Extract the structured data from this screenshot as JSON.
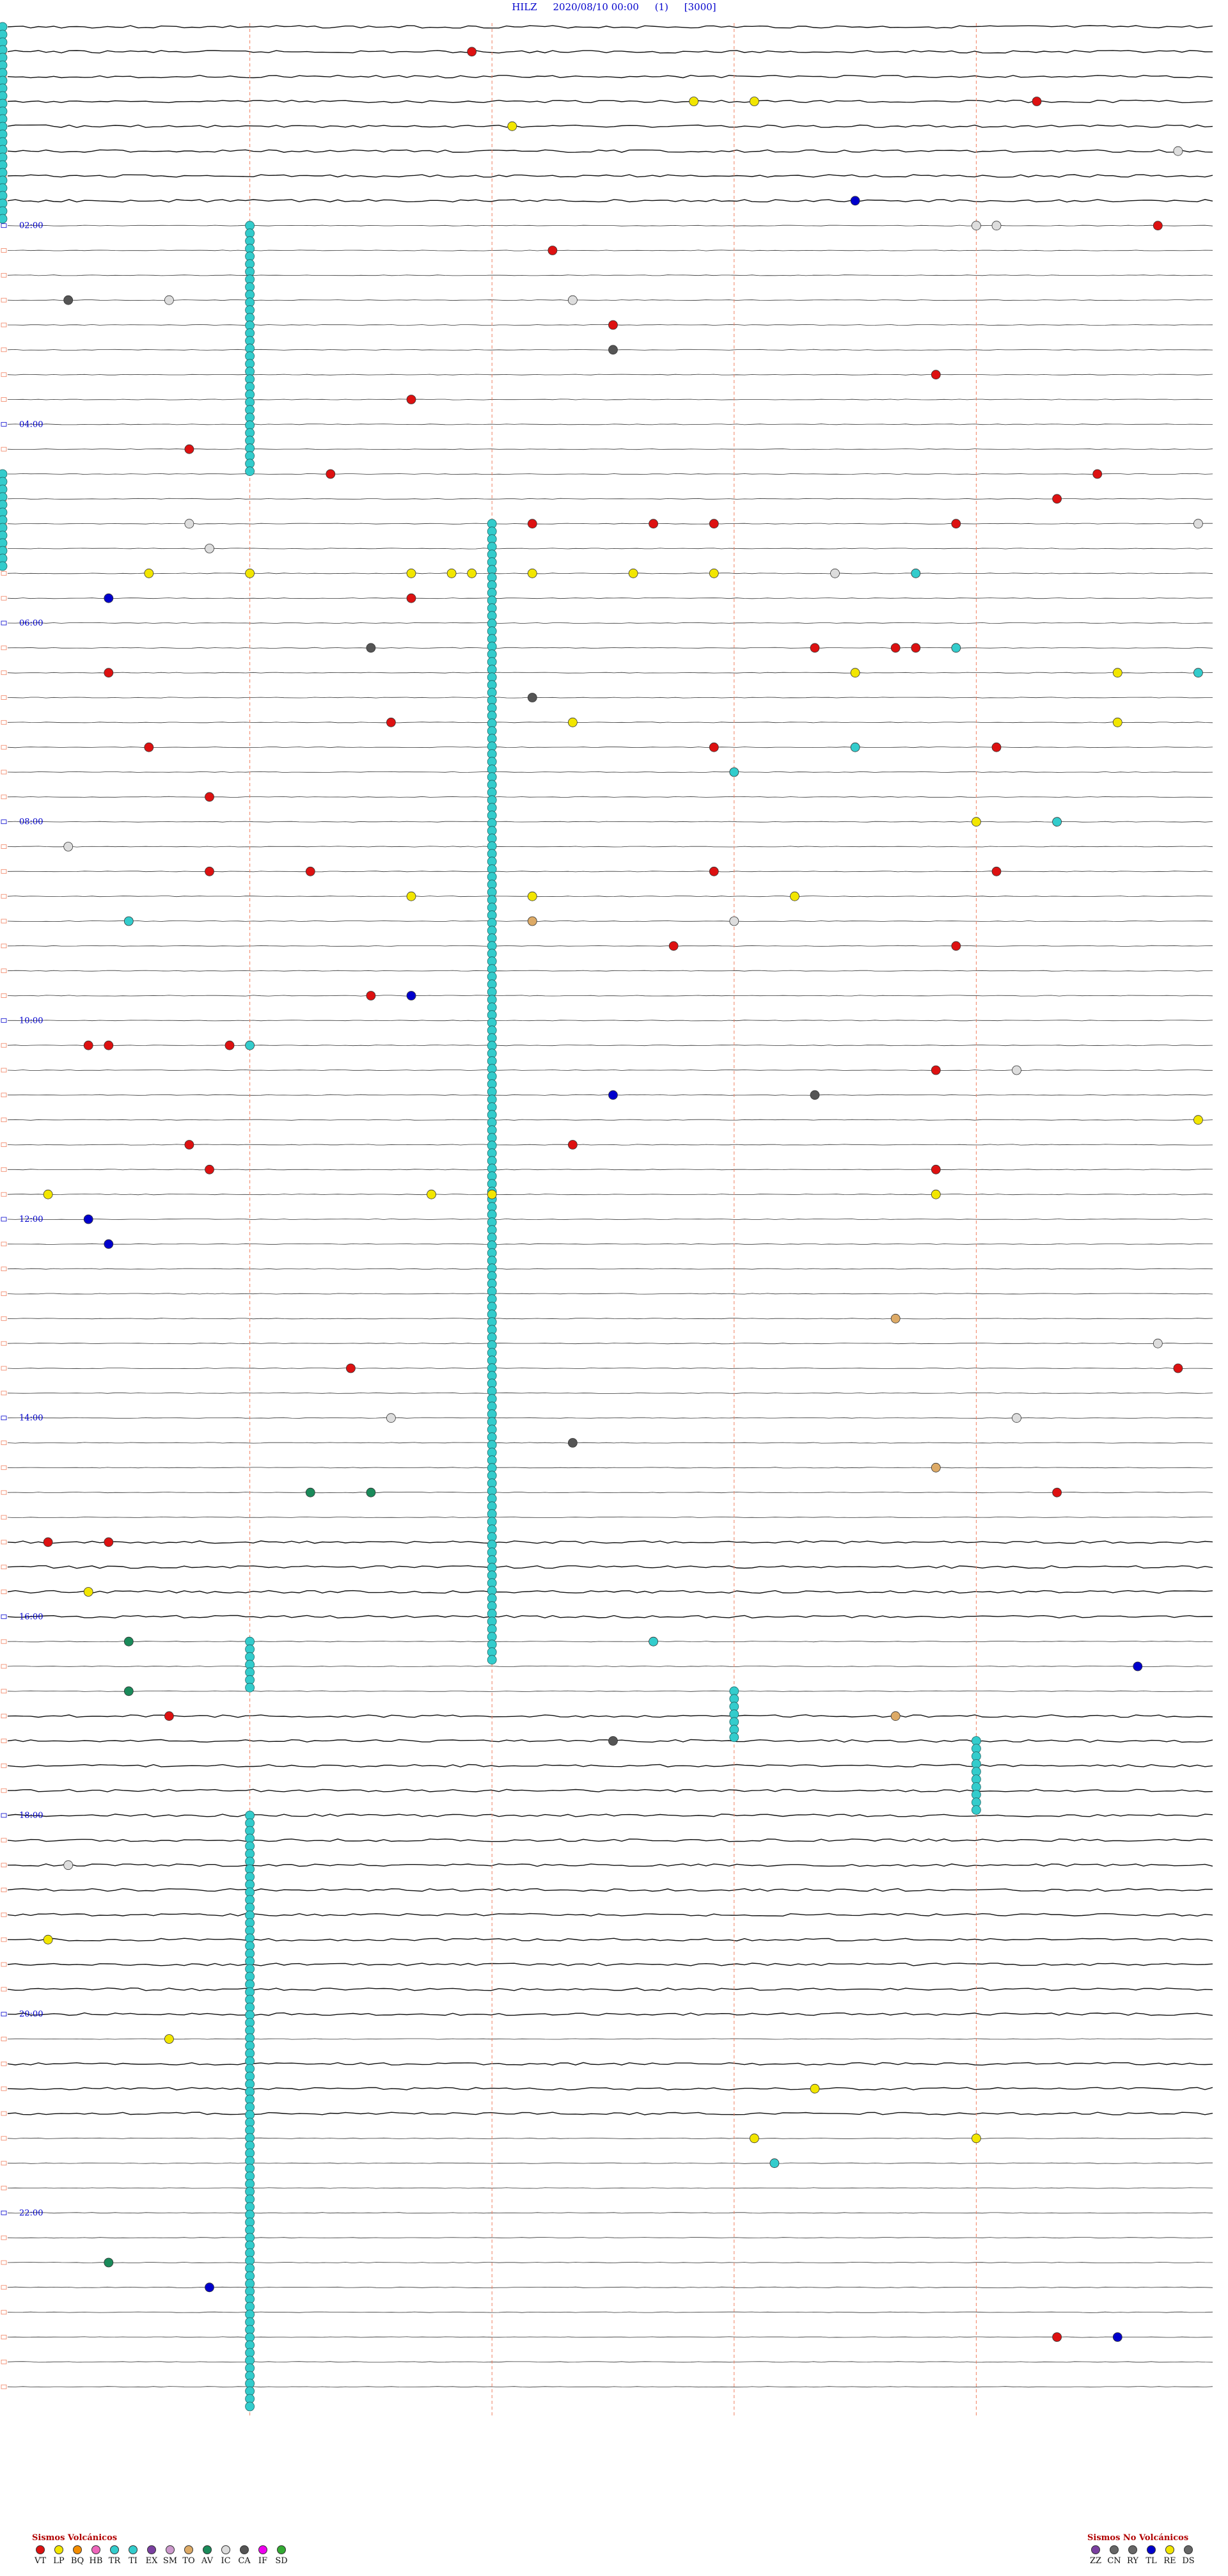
{
  "header": {
    "station": "HILZ",
    "datetime": "2020/08/10 00:00",
    "channel": "(1)",
    "scale": "[3000]"
  },
  "chart_data": {
    "type": "scatter",
    "description_units": "helicorder: y = hour of day (0–24), x = minute within hour (0–60); each trace line = 15 minutes",
    "hour_labels": [
      "02:00",
      "04:00",
      "06:00",
      "08:00",
      "10:00",
      "12:00",
      "14:00",
      "16:00",
      "18:00",
      "20:00",
      "22:00"
    ],
    "colors": {
      "VT": "#dd1111",
      "LP": "#f2e600",
      "BQ": "#f28c00",
      "HB": "#ee66bb",
      "TR": "#33cccc",
      "TI": "#33cccc",
      "EX": "#7a3fa0",
      "SM": "#cc99cc",
      "TO": "#ddaa66",
      "AV": "#1a8a5a",
      "IC": "#dddddd",
      "CA": "#555555",
      "IF": "#ee00ee",
      "SD": "#33aa33",
      "ZZ": "#7a3fa0",
      "CN": "#666666",
      "RY": "#666666",
      "TL": "#0000cc",
      "RE": "#f2e600",
      "DS": "#666666"
    },
    "events": [
      {
        "hour": 0.25,
        "minute": 23,
        "type": "VT"
      },
      {
        "hour": 0.75,
        "minute": 34,
        "type": "LP"
      },
      {
        "hour": 0.75,
        "minute": 37,
        "type": "LP"
      },
      {
        "hour": 0.75,
        "minute": 51,
        "type": "VT"
      },
      {
        "hour": 1.0,
        "minute": 25,
        "type": "LP"
      },
      {
        "hour": 1.25,
        "minute": 58,
        "type": "IC"
      },
      {
        "hour": 1.75,
        "minute": 42,
        "type": "TL"
      },
      {
        "hour": 2.0,
        "minute": 48,
        "type": "IC"
      },
      {
        "hour": 2.0,
        "minute": 49,
        "type": "IC"
      },
      {
        "hour": 2.0,
        "minute": 57,
        "type": "VT"
      },
      {
        "hour": 2.25,
        "minute": 27,
        "type": "VT"
      },
      {
        "hour": 2.75,
        "minute": 3,
        "type": "CA"
      },
      {
        "hour": 2.75,
        "minute": 8,
        "type": "IC"
      },
      {
        "hour": 2.75,
        "minute": 28,
        "type": "IC"
      },
      {
        "hour": 3.0,
        "minute": 30,
        "type": "VT"
      },
      {
        "hour": 3.25,
        "minute": 30,
        "type": "CA"
      },
      {
        "hour": 3.5,
        "minute": 46,
        "type": "VT"
      },
      {
        "hour": 3.75,
        "minute": 20,
        "type": "VT"
      },
      {
        "hour": 4.25,
        "minute": 9,
        "type": "VT"
      },
      {
        "hour": 4.5,
        "minute": 16,
        "type": "VT"
      },
      {
        "hour": 4.5,
        "minute": 54,
        "type": "VT"
      },
      {
        "hour": 4.75,
        "minute": 52,
        "type": "VT"
      },
      {
        "hour": 5.0,
        "minute": 9,
        "type": "IC"
      },
      {
        "hour": 5.0,
        "minute": 26,
        "type": "VT"
      },
      {
        "hour": 5.0,
        "minute": 32,
        "type": "VT"
      },
      {
        "hour": 5.0,
        "minute": 35,
        "type": "VT"
      },
      {
        "hour": 5.0,
        "minute": 47,
        "type": "VT"
      },
      {
        "hour": 5.0,
        "minute": 59,
        "type": "IC"
      },
      {
        "hour": 5.25,
        "minute": 10,
        "type": "IC"
      },
      {
        "hour": 5.5,
        "minute": 7,
        "type": "LP"
      },
      {
        "hour": 5.5,
        "minute": 12,
        "type": "LP"
      },
      {
        "hour": 5.5,
        "minute": 20,
        "type": "LP"
      },
      {
        "hour": 5.5,
        "minute": 22,
        "type": "LP"
      },
      {
        "hour": 5.5,
        "minute": 23,
        "type": "LP"
      },
      {
        "hour": 5.5,
        "minute": 26,
        "type": "LP"
      },
      {
        "hour": 5.5,
        "minute": 31,
        "type": "LP"
      },
      {
        "hour": 5.5,
        "minute": 35,
        "type": "LP"
      },
      {
        "hour": 5.5,
        "minute": 41,
        "type": "IC"
      },
      {
        "hour": 5.5,
        "minute": 45,
        "type": "TR"
      },
      {
        "hour": 5.75,
        "minute": 5,
        "type": "TL"
      },
      {
        "hour": 5.75,
        "minute": 20,
        "type": "VT"
      },
      {
        "hour": 6.25,
        "minute": 18,
        "type": "CA"
      },
      {
        "hour": 6.25,
        "minute": 40,
        "type": "VT"
      },
      {
        "hour": 6.25,
        "minute": 44,
        "type": "VT"
      },
      {
        "hour": 6.25,
        "minute": 45,
        "type": "VT"
      },
      {
        "hour": 6.25,
        "minute": 47,
        "type": "TR"
      },
      {
        "hour": 6.5,
        "minute": 5,
        "type": "VT"
      },
      {
        "hour": 6.5,
        "minute": 42,
        "type": "LP"
      },
      {
        "hour": 6.5,
        "minute": 55,
        "type": "LP"
      },
      {
        "hour": 6.5,
        "minute": 59,
        "type": "TR"
      },
      {
        "hour": 6.75,
        "minute": 26,
        "type": "CA"
      },
      {
        "hour": 7.0,
        "minute": 19,
        "type": "VT"
      },
      {
        "hour": 7.0,
        "minute": 28,
        "type": "LP"
      },
      {
        "hour": 7.0,
        "minute": 55,
        "type": "LP"
      },
      {
        "hour": 7.25,
        "minute": 7,
        "type": "VT"
      },
      {
        "hour": 7.25,
        "minute": 35,
        "type": "VT"
      },
      {
        "hour": 7.25,
        "minute": 42,
        "type": "TR"
      },
      {
        "hour": 7.25,
        "minute": 49,
        "type": "VT"
      },
      {
        "hour": 7.5,
        "minute": 36,
        "type": "TR"
      },
      {
        "hour": 7.75,
        "minute": 10,
        "type": "VT"
      },
      {
        "hour": 8.0,
        "minute": 52,
        "type": "TR"
      },
      {
        "hour": 8.0,
        "minute": 48,
        "type": "LP"
      },
      {
        "hour": 8.25,
        "minute": 3,
        "type": "IC"
      },
      {
        "hour": 8.5,
        "minute": 10,
        "type": "VT"
      },
      {
        "hour": 8.5,
        "minute": 15,
        "type": "VT"
      },
      {
        "hour": 8.5,
        "minute": 35,
        "type": "VT"
      },
      {
        "hour": 8.5,
        "minute": 49,
        "type": "VT"
      },
      {
        "hour": 8.75,
        "minute": 20,
        "type": "LP"
      },
      {
        "hour": 8.75,
        "minute": 26,
        "type": "LP"
      },
      {
        "hour": 8.75,
        "minute": 39,
        "type": "LP"
      },
      {
        "hour": 9.0,
        "minute": 6,
        "type": "TR"
      },
      {
        "hour": 9.0,
        "minute": 26,
        "type": "TO"
      },
      {
        "hour": 9.0,
        "minute": 36,
        "type": "IC"
      },
      {
        "hour": 9.25,
        "minute": 33,
        "type": "VT"
      },
      {
        "hour": 9.25,
        "minute": 47,
        "type": "VT"
      },
      {
        "hour": 9.75,
        "minute": 18,
        "type": "VT"
      },
      {
        "hour": 9.75,
        "minute": 20,
        "type": "TL"
      },
      {
        "hour": 10.25,
        "minute": 4,
        "type": "VT"
      },
      {
        "hour": 10.25,
        "minute": 5,
        "type": "VT"
      },
      {
        "hour": 10.25,
        "minute": 11,
        "type": "VT"
      },
      {
        "hour": 10.25,
        "minute": 12,
        "type": "TR"
      },
      {
        "hour": 10.5,
        "minute": 46,
        "type": "VT"
      },
      {
        "hour": 10.5,
        "minute": 50,
        "type": "IC"
      },
      {
        "hour": 10.75,
        "minute": 30,
        "type": "TL"
      },
      {
        "hour": 10.75,
        "minute": 40,
        "type": "CA"
      },
      {
        "hour": 11.0,
        "minute": 59,
        "type": "LP"
      },
      {
        "hour": 11.25,
        "minute": 9,
        "type": "VT"
      },
      {
        "hour": 11.25,
        "minute": 28,
        "type": "VT"
      },
      {
        "hour": 11.5,
        "minute": 10,
        "type": "VT"
      },
      {
        "hour": 11.5,
        "minute": 46,
        "type": "VT"
      },
      {
        "hour": 11.75,
        "minute": 2,
        "type": "LP"
      },
      {
        "hour": 11.75,
        "minute": 21,
        "type": "LP"
      },
      {
        "hour": 11.75,
        "minute": 24,
        "type": "LP"
      },
      {
        "hour": 11.75,
        "minute": 46,
        "type": "LP"
      },
      {
        "hour": 12.0,
        "minute": 4,
        "type": "TL"
      },
      {
        "hour": 12.25,
        "minute": 5,
        "type": "TL"
      },
      {
        "hour": 13.0,
        "minute": 44,
        "type": "TO"
      },
      {
        "hour": 13.25,
        "minute": 57,
        "type": "IC"
      },
      {
        "hour": 13.5,
        "minute": 17,
        "type": "VT"
      },
      {
        "hour": 13.5,
        "minute": 58,
        "type": "VT"
      },
      {
        "hour": 14.0,
        "minute": 19,
        "type": "IC"
      },
      {
        "hour": 14.0,
        "minute": 50,
        "type": "IC"
      },
      {
        "hour": 14.25,
        "minute": 28,
        "type": "CA"
      },
      {
        "hour": 14.5,
        "minute": 46,
        "type": "TO"
      },
      {
        "hour": 14.75,
        "minute": 15,
        "type": "AV"
      },
      {
        "hour": 14.75,
        "minute": 18,
        "type": "AV"
      },
      {
        "hour": 14.75,
        "minute": 52,
        "type": "VT"
      },
      {
        "hour": 15.25,
        "minute": 2,
        "type": "VT"
      },
      {
        "hour": 15.25,
        "minute": 5,
        "type": "VT"
      },
      {
        "hour": 15.75,
        "minute": 4,
        "type": "LP"
      },
      {
        "hour": 16.25,
        "minute": 6,
        "type": "AV"
      },
      {
        "hour": 16.25,
        "minute": 32,
        "type": "TR"
      },
      {
        "hour": 16.5,
        "minute": 56,
        "type": "TL"
      },
      {
        "hour": 16.75,
        "minute": 6,
        "type": "AV"
      },
      {
        "hour": 17.0,
        "minute": 8,
        "type": "VT"
      },
      {
        "hour": 17.0,
        "minute": 44,
        "type": "TO"
      },
      {
        "hour": 17.25,
        "minute": 30,
        "type": "CA"
      },
      {
        "hour": 18.5,
        "minute": 3,
        "type": "IC"
      },
      {
        "hour": 19.25,
        "minute": 2,
        "type": "LP"
      },
      {
        "hour": 20.25,
        "minute": 8,
        "type": "LP"
      },
      {
        "hour": 20.75,
        "minute": 40,
        "type": "LP"
      },
      {
        "hour": 21.25,
        "minute": 37,
        "type": "LP"
      },
      {
        "hour": 21.25,
        "minute": 48,
        "type": "LP"
      },
      {
        "hour": 21.5,
        "minute": 38,
        "type": "TR"
      },
      {
        "hour": 22.5,
        "minute": 5,
        "type": "AV"
      },
      {
        "hour": 22.75,
        "minute": 10,
        "type": "TL"
      },
      {
        "hour": 23.25,
        "minute": 52,
        "type": "VT"
      },
      {
        "hour": 23.25,
        "minute": 55,
        "type": "TL"
      }
    ],
    "vertical_swarms": [
      {
        "minute": 0,
        "hour_start": 0.0,
        "hour_end": 2.0
      },
      {
        "minute": 0,
        "hour_start": 4.5,
        "hour_end": 5.5
      },
      {
        "minute": 12,
        "hour_start": 2.0,
        "hour_end": 4.5
      },
      {
        "minute": 24,
        "hour_start": 5.0,
        "hour_end": 16.5
      },
      {
        "minute": 12,
        "hour_start": 16.25,
        "hour_end": 16.75
      },
      {
        "minute": 36,
        "hour_start": 16.75,
        "hour_end": 17.25
      },
      {
        "minute": 48,
        "hour_start": 17.25,
        "hour_end": 18.0
      },
      {
        "minute": 12,
        "hour_start": 18.0,
        "hour_end": 24.0
      }
    ]
  },
  "legend": {
    "volcanic_title": "Sismos Volcánicos",
    "volcanic": [
      "VT",
      "LP",
      "BQ",
      "HB",
      "TR",
      "TI",
      "EX",
      "SM",
      "TO",
      "AV",
      "IC",
      "CA",
      "IF",
      "SD"
    ],
    "non_volcanic_title": "Sismos No Volcánicos",
    "non_volcanic": [
      "ZZ",
      "CN",
      "RY",
      "TL",
      "RE",
      "DS"
    ]
  }
}
